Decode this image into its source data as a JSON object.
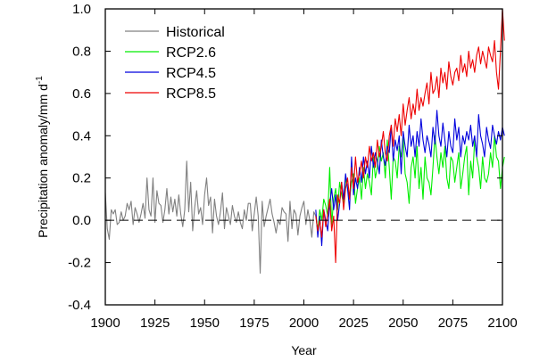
{
  "chart_data": {
    "type": "line",
    "xlabel": "Year",
    "ylabel": "Precipitation anomaly/mm d",
    "ylabel_superscript": "-1",
    "xlim": [
      1900,
      2100
    ],
    "ylim": [
      -0.4,
      1.0
    ],
    "xticks": [
      1900,
      1925,
      1950,
      1975,
      2000,
      2025,
      2050,
      2075,
      2100
    ],
    "yticks": [
      -0.4,
      -0.2,
      0.0,
      0.2,
      0.4,
      0.6,
      0.8,
      1.0
    ],
    "ytick_labels": [
      "-0.4",
      "-0.2",
      "0.0",
      "0.2",
      "0.4",
      "0.6",
      "0.8",
      "1.0"
    ],
    "reference_line": {
      "y": 0.0,
      "style": "dashed",
      "color": "#000000"
    },
    "legend": {
      "position": "top-left"
    },
    "grid": false,
    "series": [
      {
        "name": "Historical",
        "color": "#808080",
        "x_start": 1900,
        "values": [
          0.13,
          -0.04,
          -0.09,
          0.05,
          0.03,
          0.05,
          -0.02,
          -0.01,
          0.04,
          0.0,
          0.02,
          0.08,
          0.05,
          0.09,
          -0.02,
          0.06,
          0.03,
          -0.01,
          0.03,
          0.08,
          0.01,
          0.2,
          0.05,
          0.02,
          0.2,
          -0.01,
          0.14,
          0.08,
          0.07,
          -0.01,
          0.05,
          0.15,
          0.03,
          0.11,
          0.04,
          0.1,
          0.02,
          0.12,
          0.03,
          -0.03,
          0.05,
          0.28,
          0.04,
          0.18,
          -0.05,
          0.06,
          0.14,
          0.03,
          0.06,
          -0.02,
          0.12,
          0.2,
          0.07,
          0.11,
          -0.06,
          0.1,
          0.02,
          -0.02,
          0.04,
          0.13,
          -0.04,
          0.06,
          0.02,
          -0.02,
          0.07,
          0.02,
          -0.01,
          0.04,
          -0.01,
          -0.04,
          0.05,
          0.0,
          0.08,
          0.08,
          -0.05,
          0.03,
          0.11,
          0.02,
          -0.25,
          0.09,
          -0.03,
          0.02,
          0.06,
          0.1,
          0.03,
          -0.01,
          -0.06,
          0.0,
          -0.02,
          0.06,
          0.04,
          0.03,
          -0.1,
          0.09,
          -0.04,
          0.05,
          0.03,
          -0.07,
          0.02,
          0.06,
          0.09,
          -0.02,
          0.05,
          0.0,
          -0.08,
          0.04,
          0.02
        ]
      },
      {
        "name": "RCP2.6",
        "color": "#00ee00",
        "x_start": 2006,
        "values": [
          0.02,
          -0.05,
          0.05,
          0.0,
          0.1,
          0.07,
          0.02,
          0.25,
          -0.02,
          0.1,
          0.15,
          0.05,
          0.18,
          0.12,
          0.08,
          0.2,
          0.15,
          0.1,
          0.18,
          0.22,
          0.08,
          0.15,
          0.2,
          0.1,
          0.25,
          0.15,
          0.22,
          0.18,
          0.12,
          0.3,
          0.2,
          0.25,
          0.35,
          0.28,
          0.32,
          0.2,
          0.38,
          0.25,
          0.1,
          0.3,
          0.28,
          0.2,
          0.35,
          0.3,
          0.4,
          0.22,
          0.18,
          0.08,
          0.25,
          0.3,
          0.2,
          0.35,
          0.15,
          0.25,
          0.1,
          0.3,
          0.2,
          0.18,
          0.12,
          0.25,
          0.4,
          0.3,
          0.22,
          0.32,
          0.25,
          0.35,
          0.2,
          0.15,
          0.3,
          0.28,
          0.18,
          0.25,
          0.32,
          0.15,
          0.22,
          0.3,
          0.35,
          0.12,
          0.28,
          0.2,
          0.38,
          0.3,
          0.25,
          0.15,
          0.3,
          0.2,
          0.18,
          0.22,
          0.32,
          0.25,
          0.4,
          0.3,
          0.28,
          0.15,
          0.25,
          0.3
        ]
      },
      {
        "name": "RCP4.5",
        "color": "#0000dd",
        "x_start": 2006,
        "values": [
          0.05,
          -0.08,
          0.02,
          -0.12,
          0.05,
          0.0,
          -0.05,
          0.08,
          0.15,
          0.05,
          0.12,
          0.0,
          0.08,
          0.18,
          0.1,
          0.22,
          0.15,
          0.05,
          0.3,
          0.12,
          0.2,
          0.15,
          0.25,
          0.18,
          0.3,
          0.22,
          0.28,
          0.2,
          0.35,
          0.25,
          0.32,
          0.28,
          0.22,
          0.38,
          0.3,
          0.26,
          0.35,
          0.32,
          0.45,
          0.28,
          0.38,
          0.33,
          0.4,
          0.22,
          0.42,
          0.35,
          0.3,
          0.45,
          0.35,
          0.4,
          0.3,
          0.42,
          0.35,
          0.48,
          0.38,
          0.32,
          0.4,
          0.36,
          0.3,
          0.44,
          0.36,
          0.52,
          0.4,
          0.35,
          0.46,
          0.38,
          0.3,
          0.42,
          0.35,
          0.32,
          0.48,
          0.38,
          0.44,
          0.3,
          0.4,
          0.36,
          0.42,
          0.38,
          0.45,
          0.35,
          0.4,
          0.3,
          0.5,
          0.4,
          0.36,
          0.3,
          0.44,
          0.38,
          0.34,
          0.45,
          0.4,
          0.36,
          0.42,
          0.38,
          0.44,
          0.4
        ]
      },
      {
        "name": "RCP8.5",
        "color": "#ee0000",
        "x_start": 2006,
        "values": [
          0.02,
          -0.05,
          0.0,
          -0.08,
          0.05,
          -0.03,
          0.03,
          0.1,
          -0.05,
          0.02,
          -0.2,
          0.12,
          0.08,
          0.18,
          0.05,
          0.15,
          0.2,
          0.1,
          0.25,
          0.15,
          0.3,
          0.18,
          0.22,
          0.28,
          0.2,
          0.3,
          0.25,
          0.35,
          0.28,
          0.32,
          0.25,
          0.38,
          0.3,
          0.35,
          0.42,
          0.32,
          0.28,
          0.4,
          0.45,
          0.35,
          0.48,
          0.42,
          0.5,
          0.4,
          0.55,
          0.45,
          0.52,
          0.58,
          0.48,
          0.55,
          0.5,
          0.62,
          0.52,
          0.58,
          0.54,
          0.6,
          0.65,
          0.55,
          0.7,
          0.6,
          0.62,
          0.68,
          0.58,
          0.72,
          0.65,
          0.7,
          0.62,
          0.75,
          0.68,
          0.64,
          0.7,
          0.72,
          0.66,
          0.78,
          0.7,
          0.74,
          0.68,
          0.8,
          0.72,
          0.76,
          0.7,
          0.78,
          0.82,
          0.74,
          0.8,
          0.76,
          0.72,
          0.82,
          0.78,
          0.75,
          0.85,
          0.7,
          0.62,
          0.8,
          1.0,
          0.85
        ]
      }
    ]
  }
}
